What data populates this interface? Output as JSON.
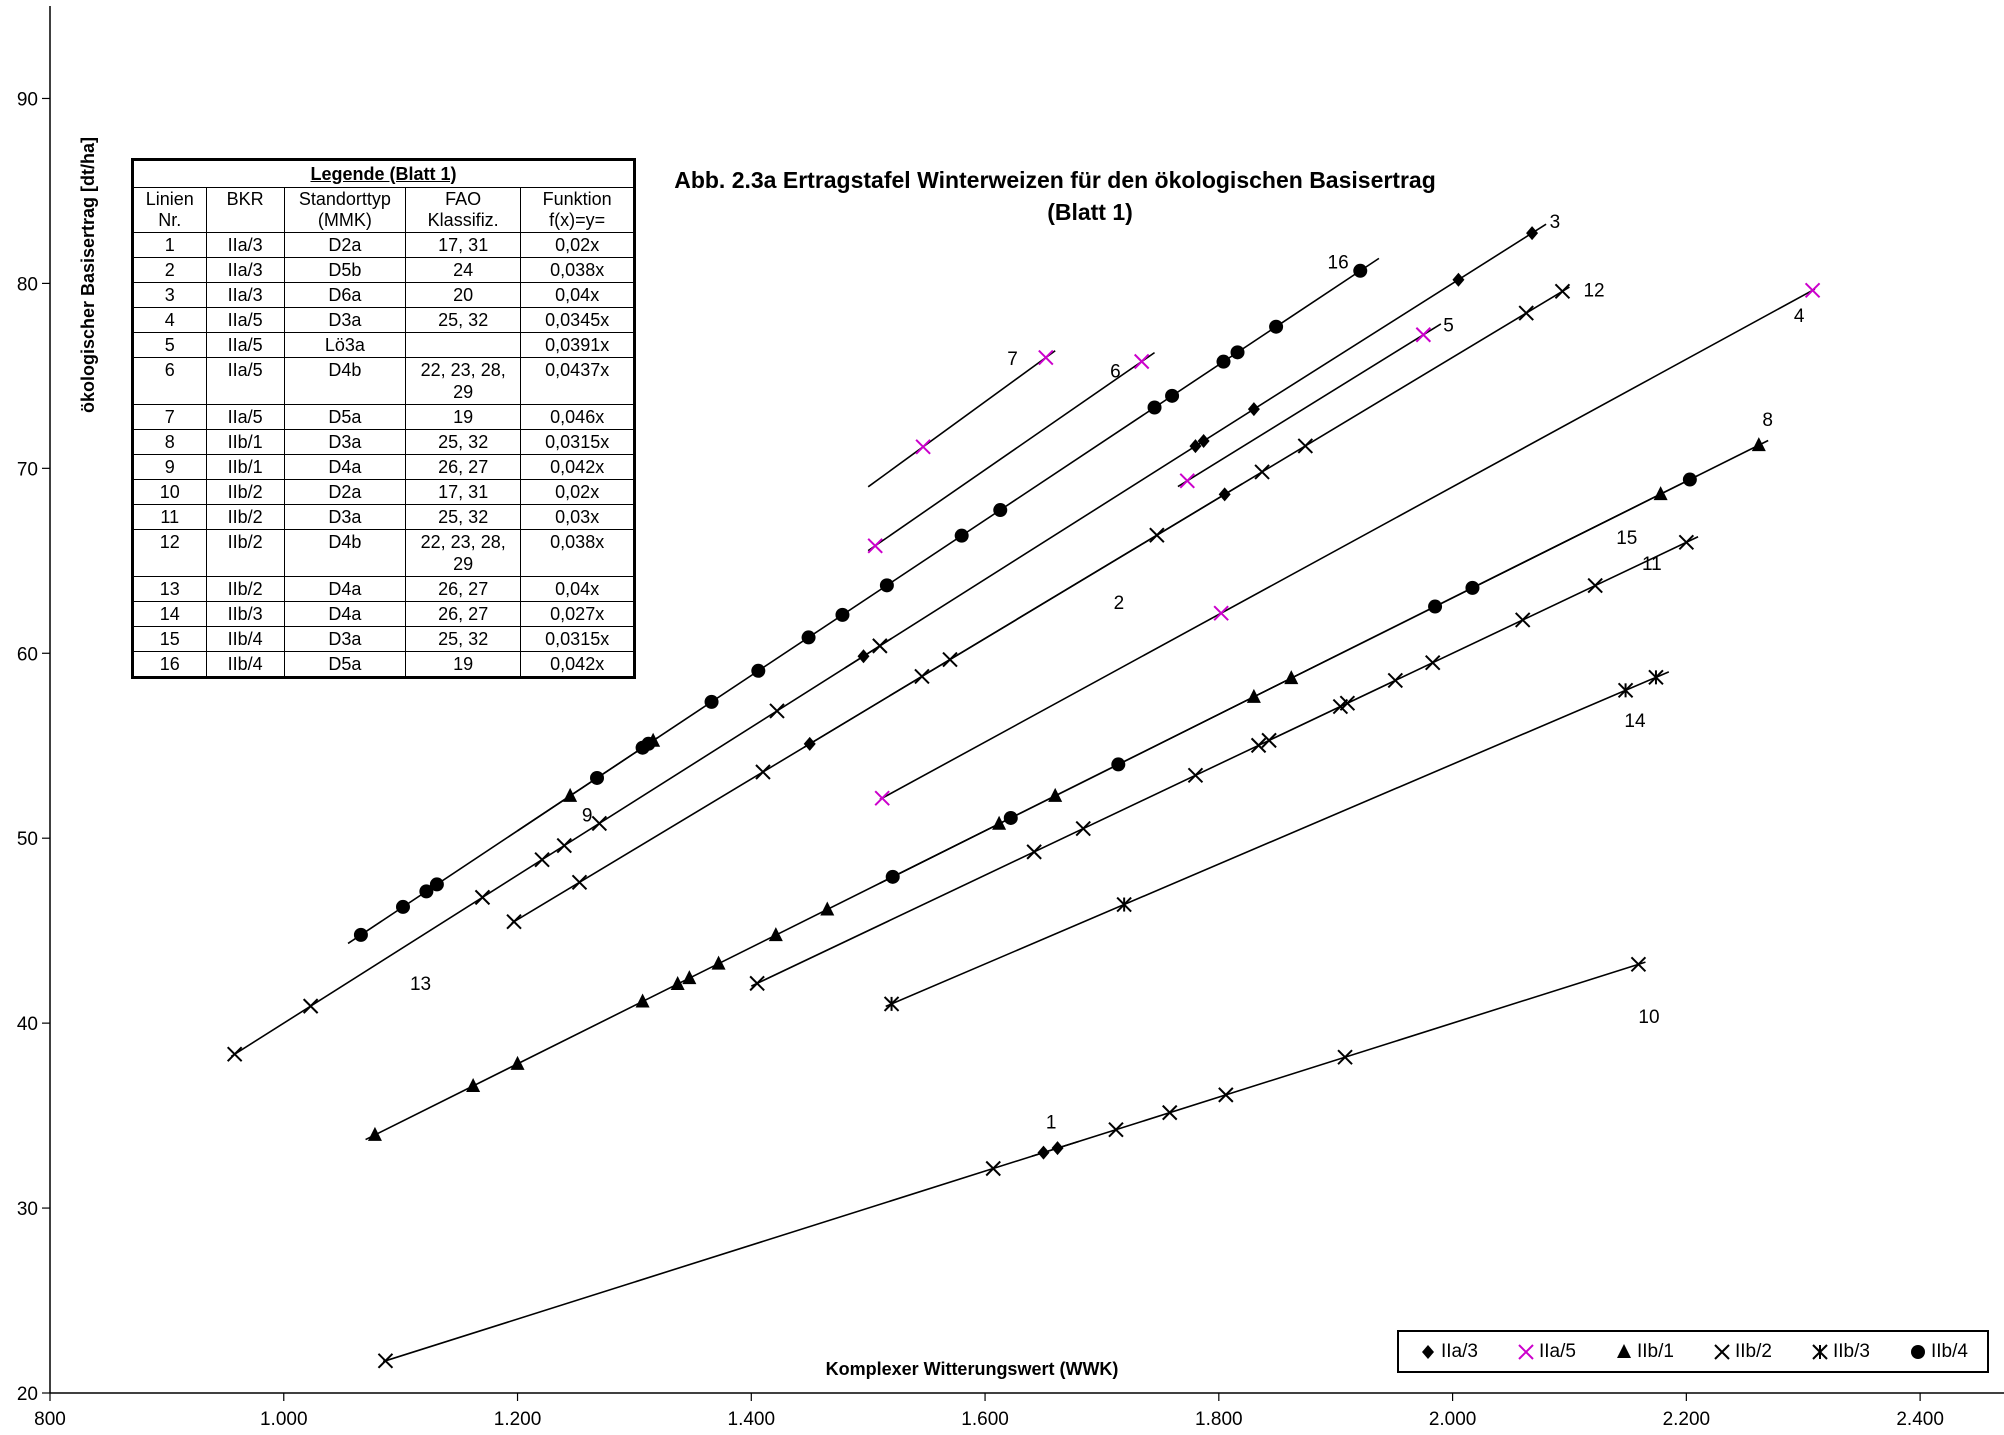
{
  "chart_data": {
    "type": "scatter",
    "title": "Abb. 2.3a  Ertragstafel Winterweizen für den ökologischen Basisertrag",
    "subtitle": "(Blatt 1)",
    "xlabel": "Komplexer Witterungswert (WWK)",
    "ylabel": "ökologischer Basisertrag [dt/ha]",
    "xlim": [
      800,
      2500
    ],
    "ylim": [
      20,
      95
    ],
    "x_ticks": [
      800,
      1000,
      1200,
      1400,
      1600,
      1800,
      2000,
      2200,
      2400
    ],
    "x_tick_labels": [
      "800",
      "1.000",
      "1.200",
      "1.400",
      "1.600",
      "1.800",
      "2.000",
      "2.200",
      "2.400"
    ],
    "y_ticks": [
      20,
      30,
      40,
      50,
      60,
      70,
      80,
      90
    ],
    "y_tick_labels": [
      "20",
      "30",
      "40",
      "50",
      "60",
      "70",
      "80",
      "90"
    ],
    "grid": false,
    "legend_position": "bottom-right",
    "series": [
      {
        "name": "IIa/3",
        "marker": "diamond",
        "color": "#000000"
      },
      {
        "name": "IIa/5",
        "marker": "x",
        "color": "#cc00cc"
      },
      {
        "name": "IIb/1",
        "marker": "triangle",
        "color": "#000000"
      },
      {
        "name": "IIb/2",
        "marker": "x",
        "color": "#000000"
      },
      {
        "name": "IIb/3",
        "marker": "star",
        "color": "#000000"
      },
      {
        "name": "IIb/4",
        "marker": "circle",
        "color": "#000000"
      }
    ],
    "lines": [
      {
        "label": "1",
        "group": "IIa/3",
        "slope": 0.02,
        "x_range": [
          1640,
          1680
        ],
        "points": [
          1650,
          1662
        ],
        "label_pos": [
          1652,
          34.3
        ]
      },
      {
        "label": "2",
        "group": "IIa/3",
        "slope": 0.038,
        "x_range": [
          1445,
          1820
        ],
        "points": [
          1450,
          1805
        ],
        "label_pos": [
          1710,
          62.4
        ]
      },
      {
        "label": "3",
        "group": "IIa/3",
        "slope": 0.04,
        "x_range": [
          1480,
          2080
        ],
        "points": [
          1496,
          1780,
          1787,
          1830,
          2005,
          2068
        ],
        "label_pos": [
          2083,
          83.0
        ]
      },
      {
        "label": "4",
        "group": "IIa/5",
        "slope": 0.0345,
        "x_range": [
          1510,
          2310
        ],
        "points": [
          1512,
          1802,
          2308
        ],
        "label_pos": [
          2292,
          77.9
        ]
      },
      {
        "label": "5",
        "group": "IIa/5",
        "slope": 0.0391,
        "x_range": [
          1765,
          1990
        ],
        "points": [
          1773,
          1975
        ],
        "label_pos": [
          1992,
          77.4
        ]
      },
      {
        "label": "6",
        "group": "IIa/5",
        "slope": 0.0437,
        "x_range": [
          1500,
          1745
        ],
        "points": [
          1506,
          1734
        ],
        "label_pos": [
          1707,
          74.9
        ]
      },
      {
        "label": "7",
        "group": "IIa/5",
        "slope": 0.046,
        "x_range": [
          1500,
          1660
        ],
        "points": [
          1547,
          1652
        ],
        "label_pos": [
          1619,
          75.6
        ]
      },
      {
        "label": "8",
        "group": "IIb/1",
        "slope": 0.0315,
        "x_range": [
          1070,
          2270
        ],
        "points": [
          1078,
          1162,
          1200,
          1307,
          1337,
          1347,
          1372,
          1421,
          1465,
          1612,
          1660,
          1830,
          1862,
          2178,
          2262
        ],
        "label_pos": [
          2265,
          72.3
        ]
      },
      {
        "label": "9",
        "group": "IIb/1",
        "slope": 0.042,
        "x_range": [
          1200,
          1320
        ],
        "points": [
          1245,
          1316
        ],
        "label_pos": [
          1255,
          50.9
        ]
      },
      {
        "label": "10",
        "group": "IIb/2",
        "slope": 0.02,
        "x_range": [
          1085,
          2165
        ],
        "points": [
          1087,
          1607,
          1712,
          1758,
          1806,
          1908,
          2159
        ],
        "label_pos": [
          2159,
          40.0
        ]
      },
      {
        "label": "11",
        "group": "IIb/2",
        "slope": 0.03,
        "x_range": [
          1400,
          2210
        ],
        "points": [
          1405,
          1642,
          1684,
          1780,
          1834,
          1843,
          1904,
          1910,
          1951,
          1983,
          2060,
          2122,
          2200
        ],
        "label_pos": [
          2162,
          64.5
        ]
      },
      {
        "label": "12",
        "group": "IIb/2",
        "slope": 0.038,
        "x_range": [
          1195,
          2100
        ],
        "points": [
          1197,
          1253,
          1410,
          1546,
          1570,
          1747,
          1837,
          1874,
          2063,
          2094
        ],
        "label_pos": [
          2112,
          79.3
        ]
      },
      {
        "label": "13",
        "group": "IIb/2",
        "slope": 0.04,
        "x_range": [
          955,
          1520
        ],
        "points": [
          958,
          1023,
          1170,
          1221,
          1240,
          1270,
          1422,
          1510
        ],
        "label_pos": [
          1108,
          41.8
        ]
      },
      {
        "label": "14",
        "group": "IIb/3",
        "slope": 0.027,
        "x_range": [
          1515,
          2185
        ],
        "points": [
          1520,
          1719,
          2148,
          2174
        ],
        "label_pos": [
          2147,
          56.0
        ]
      },
      {
        "label": "15",
        "group": "IIb/4",
        "slope": 0.0315,
        "x_range": [
          1510,
          2210
        ],
        "points": [
          1521,
          1622,
          1714,
          1985,
          2017,
          2203
        ],
        "label_pos": [
          2140,
          65.9
        ]
      },
      {
        "label": "16",
        "group": "IIb/4",
        "slope": 0.042,
        "x_range": [
          1055,
          1937
        ],
        "points": [
          1066,
          1102,
          1122,
          1131,
          1268,
          1307,
          1312,
          1366,
          1406,
          1449,
          1478,
          1516,
          1580,
          1613,
          1745,
          1760,
          1804,
          1816,
          1849,
          1921
        ],
        "label_pos": [
          1893,
          80.8
        ]
      }
    ]
  },
  "legend_table": {
    "title": "Legende (Blatt 1)",
    "headers": [
      [
        "Linien",
        "Nr."
      ],
      [
        "BKR",
        ""
      ],
      [
        "Standorttyp",
        "(MMK)"
      ],
      [
        "FAO",
        "Klassifiz."
      ],
      [
        "Funktion",
        "f(x)=y="
      ]
    ],
    "rows": [
      [
        "1",
        "IIa/3",
        "D2a",
        "17, 31",
        "0,02x"
      ],
      [
        "2",
        "IIa/3",
        "D5b",
        "24",
        "0,038x"
      ],
      [
        "3",
        "IIa/3",
        "D6a",
        "20",
        "0,04x"
      ],
      [
        "4",
        "IIa/5",
        "D3a",
        "25, 32",
        "0,0345x"
      ],
      [
        "5",
        "IIa/5",
        "Lö3a",
        "",
        "0,0391x"
      ],
      [
        "6",
        "IIa/5",
        "D4b",
        "22, 23, 28, 29",
        "0,0437x"
      ],
      [
        "7",
        "IIa/5",
        "D5a",
        "19",
        "0,046x"
      ],
      [
        "8",
        "IIb/1",
        "D3a",
        "25, 32",
        "0,0315x"
      ],
      [
        "9",
        "IIb/1",
        "D4a",
        "26, 27",
        "0,042x"
      ],
      [
        "10",
        "IIb/2",
        "D2a",
        "17, 31",
        "0,02x"
      ],
      [
        "11",
        "IIb/2",
        "D3a",
        "25, 32",
        "0,03x"
      ],
      [
        "12",
        "IIb/2",
        "D4b",
        "22, 23, 28, 29",
        "0,038x"
      ],
      [
        "13",
        "IIb/2",
        "D4a",
        "26, 27",
        "0,04x"
      ],
      [
        "14",
        "IIb/3",
        "D4a",
        "26, 27",
        "0,027x"
      ],
      [
        "15",
        "IIb/4",
        "D3a",
        "25, 32",
        "0,0315x"
      ],
      [
        "16",
        "IIb/4",
        "D5a",
        "19",
        "0,042x"
      ]
    ]
  }
}
